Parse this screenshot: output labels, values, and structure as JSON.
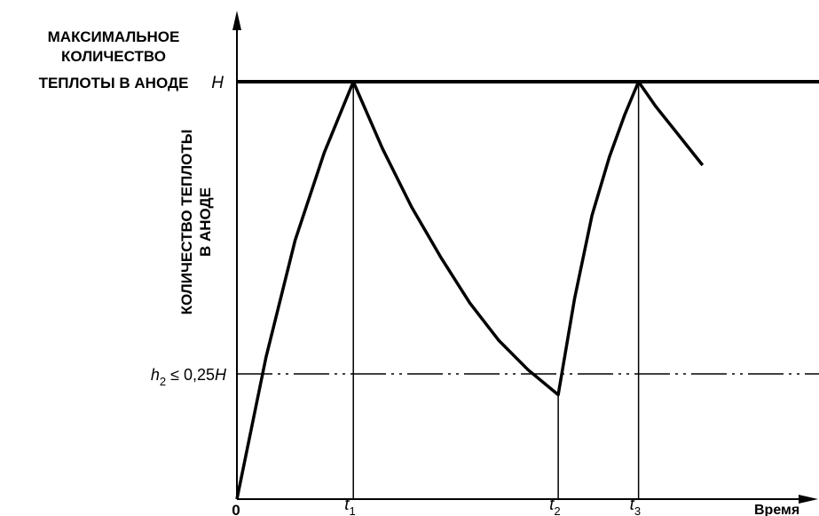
{
  "chart_data": {
    "type": "line",
    "title_lines": [
      "МАКСИМАЛЬНОЕ",
      "КОЛИЧЕСТВО",
      "ТЕПЛОТЫ В АНОДЕ"
    ],
    "ylabel_lines": [
      "КОЛИЧЕСТВО ТЕПЛОТЫ",
      "В АНОДЕ"
    ],
    "xlabel": "Время",
    "origin_label": "0",
    "y_ticks": {
      "H": {
        "main": "H",
        "value": 1.0
      },
      "h2": {
        "main": "h",
        "sub": "2",
        "rest": " ≤ 0,25",
        "tail": "H",
        "value": 0.25
      }
    },
    "x_ticks": [
      {
        "main": "t",
        "sub": "1",
        "x": 1.0
      },
      {
        "main": "t",
        "sub": "2",
        "x": 2.76
      },
      {
        "main": "t",
        "sub": "3",
        "x": 3.45
      }
    ],
    "xlim": [
      0,
      5.0
    ],
    "ylim": [
      0,
      1.0
    ],
    "series": [
      {
        "points": [
          [
            0,
            0
          ],
          [
            0.25,
            0.34
          ],
          [
            0.5,
            0.62
          ],
          [
            0.75,
            0.83
          ],
          [
            1.0,
            1.0
          ],
          [
            1.25,
            0.84
          ],
          [
            1.5,
            0.7
          ],
          [
            1.75,
            0.58
          ],
          [
            2.0,
            0.47
          ],
          [
            2.25,
            0.38
          ],
          [
            2.5,
            0.31
          ],
          [
            2.76,
            0.25
          ],
          [
            2.9,
            0.48
          ],
          [
            3.05,
            0.68
          ],
          [
            3.2,
            0.82
          ],
          [
            3.33,
            0.92
          ],
          [
            3.45,
            1.0
          ],
          [
            3.6,
            0.94
          ],
          [
            3.8,
            0.87
          ],
          [
            4.0,
            0.8
          ]
        ]
      }
    ],
    "line_color": "#000000"
  }
}
